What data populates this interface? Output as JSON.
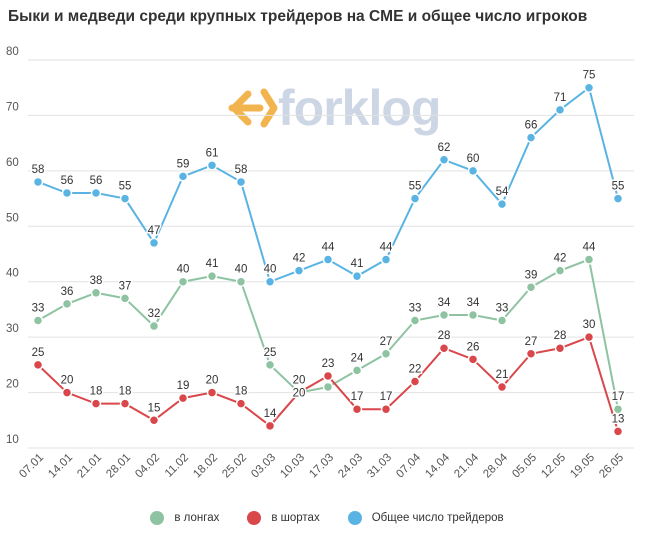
{
  "logo": {
    "text": "forklog",
    "arrow_color": "#f0a830",
    "text_color": "#c5cfe0"
  },
  "chart_data": {
    "type": "line",
    "title": "Быки и медведи среди крупных трейдеров на CME и общее число игроков",
    "categories": [
      "07.01",
      "14.01",
      "21.01",
      "28.01",
      "04.02",
      "11.02",
      "18.02",
      "25.02",
      "03.03",
      "10.03",
      "17.03",
      "24.03",
      "31.03",
      "07.04",
      "14.04",
      "21.04",
      "28.04",
      "05.05",
      "12.05",
      "19.05",
      "26.05"
    ],
    "ylim": [
      10,
      80
    ],
    "yticks": [
      10,
      20,
      30,
      40,
      50,
      60,
      70,
      80
    ],
    "grid": true,
    "legend_position": "bottom",
    "series": [
      {
        "name": "в лонгах",
        "color": "#8ec3a2",
        "values": [
          33,
          36,
          38,
          37,
          32,
          40,
          41,
          40,
          25,
          20,
          21,
          24,
          27,
          33,
          34,
          34,
          33,
          39,
          42,
          44,
          17
        ],
        "labels": [
          "33",
          "36",
          "38",
          "37",
          "32",
          "40",
          "41",
          "40",
          "25",
          "20",
          "",
          "24",
          "27",
          "33",
          "34",
          "34",
          "33",
          "39",
          "42",
          "44",
          "17"
        ]
      },
      {
        "name": "в шортах",
        "color": "#d9474b",
        "values": [
          25,
          20,
          18,
          18,
          15,
          19,
          20,
          18,
          14,
          20,
          23,
          17,
          17,
          22,
          28,
          26,
          21,
          27,
          28,
          30,
          13
        ],
        "labels": [
          "25",
          "20",
          "18",
          "18",
          "15",
          "19",
          "20",
          "18",
          "14",
          "",
          "23",
          "17",
          "17",
          "22",
          "28",
          "26",
          "21",
          "27",
          "28",
          "30",
          "13"
        ]
      },
      {
        "name": "Общее число трейдеров",
        "color": "#5ab4e3",
        "values": [
          58,
          56,
          56,
          55,
          47,
          59,
          61,
          58,
          40,
          42,
          44,
          41,
          44,
          55,
          62,
          60,
          54,
          66,
          71,
          75,
          55
        ],
        "labels": [
          "58",
          "56",
          "56",
          "55",
          "47",
          "59",
          "61",
          "58",
          "40",
          "42",
          "44",
          "41",
          "44",
          "55",
          "62",
          "60",
          "54",
          "66",
          "71",
          "75",
          "55"
        ]
      }
    ],
    "extra_labels": [
      {
        "x": "10.03",
        "y": 20,
        "text": "20"
      }
    ]
  }
}
